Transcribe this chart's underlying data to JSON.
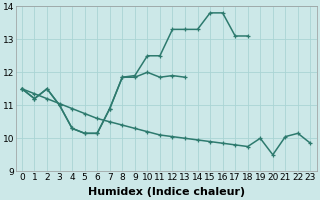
{
  "xlabel": "Humidex (Indice chaleur)",
  "bg_color": "#cce8e8",
  "line_color": "#2d7a6e",
  "grid_color": "#aad4d4",
  "ylim": [
    9,
    14
  ],
  "xlim": [
    -0.5,
    23.5
  ],
  "yticks": [
    9,
    10,
    11,
    12,
    13,
    14
  ],
  "xticks": [
    0,
    1,
    2,
    3,
    4,
    5,
    6,
    7,
    8,
    9,
    10,
    11,
    12,
    13,
    14,
    15,
    16,
    17,
    18,
    19,
    20,
    21,
    22,
    23
  ],
  "curve1_x": [
    0,
    1,
    2,
    3,
    4,
    5,
    6,
    7,
    8,
    9,
    10,
    11,
    12,
    13,
    14,
    15,
    16,
    17,
    18
  ],
  "curve1_y": [
    11.5,
    11.2,
    11.5,
    11.0,
    10.3,
    10.15,
    10.15,
    10.9,
    11.85,
    11.9,
    12.5,
    12.5,
    13.3,
    13.3,
    13.3,
    13.8,
    13.8,
    13.1,
    13.1
  ],
  "curve2_x": [
    0,
    1,
    2,
    3,
    4,
    5,
    6,
    7,
    8,
    9,
    10,
    11,
    12,
    13
  ],
  "curve2_y": [
    11.5,
    11.2,
    11.5,
    11.0,
    10.3,
    10.15,
    10.15,
    10.9,
    11.85,
    11.85,
    12.0,
    11.85,
    11.9,
    11.85
  ],
  "curve3_x": [
    0,
    1,
    2,
    3,
    4,
    5,
    6,
    7,
    8,
    9,
    10,
    11,
    12,
    13,
    14,
    15,
    16,
    17,
    18,
    19,
    20,
    21,
    22,
    23
  ],
  "curve3_y": [
    11.5,
    11.35,
    11.2,
    11.05,
    10.9,
    10.75,
    10.6,
    10.5,
    10.4,
    10.3,
    10.2,
    10.1,
    10.05,
    10.0,
    9.95,
    9.9,
    9.85,
    9.8,
    9.75,
    10.0,
    9.5,
    10.05,
    10.15,
    9.85
  ],
  "marker_size": 3.5,
  "linewidth": 1.1,
  "tick_fontsize": 6.5,
  "label_fontsize": 8
}
